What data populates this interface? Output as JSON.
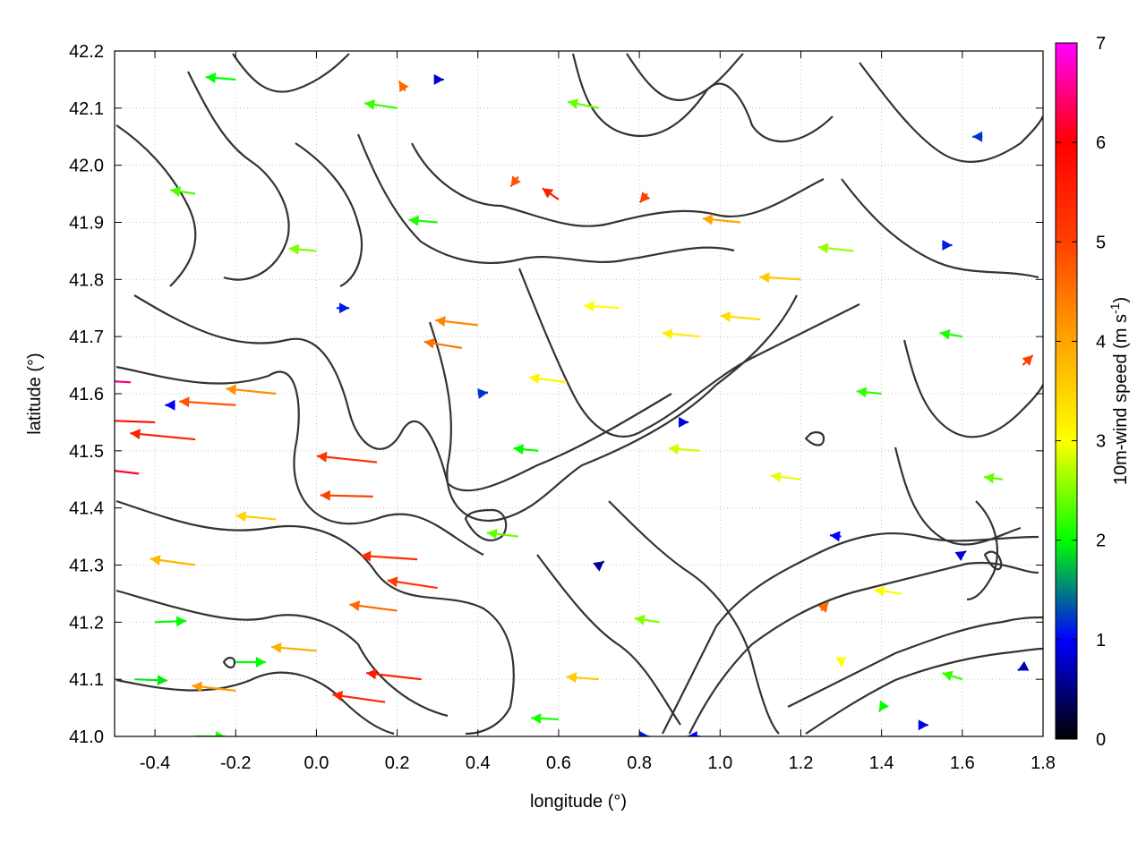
{
  "chart_data": {
    "type": "vector-field",
    "title": "",
    "xlabel": "longitude (°)",
    "ylabel": "latitude (°)",
    "xlim": [
      -0.5,
      1.8
    ],
    "ylim": [
      41.0,
      42.2
    ],
    "xticks": [
      -0.4,
      -0.2,
      0.0,
      0.2,
      0.4,
      0.6,
      0.8,
      1.0,
      1.2,
      1.4,
      1.6,
      1.8
    ],
    "xtick_labels": [
      "-0.4",
      "-0.2",
      "0.0",
      "0.2",
      "0.4",
      "0.6",
      "0.8",
      "1.0",
      "1.2",
      "1.4",
      "1.6",
      "1.8"
    ],
    "yticks": [
      41.0,
      41.1,
      41.2,
      41.3,
      41.4,
      41.5,
      41.6,
      41.7,
      41.8,
      41.9,
      42.0,
      42.1,
      42.2
    ],
    "ytick_labels": [
      "41.0",
      "41.1",
      "41.2",
      "41.3",
      "41.4",
      "41.5",
      "41.6",
      "41.7",
      "41.8",
      "41.9",
      "42.0",
      "42.1",
      "42.2"
    ],
    "grid": true,
    "colorbar": {
      "label": "10m-wind speed (m s",
      "label_superscript": "-1",
      "label_suffix": ")",
      "range": [
        0,
        7
      ],
      "ticks": [
        0,
        1,
        2,
        3,
        4,
        5,
        6,
        7
      ],
      "tick_labels": [
        "0",
        "1",
        "2",
        "3",
        "4",
        "5",
        "6",
        "7"
      ],
      "colormap": [
        {
          "value": 0,
          "color": "#000000"
        },
        {
          "value": 1,
          "color": "#0000ff"
        },
        {
          "value": 1.5,
          "color": "#008080"
        },
        {
          "value": 2,
          "color": "#00ff00"
        },
        {
          "value": 3,
          "color": "#ffff00"
        },
        {
          "value": 4,
          "color": "#ffa500"
        },
        {
          "value": 5,
          "color": "#ff4000"
        },
        {
          "value": 6,
          "color": "#ff0000"
        },
        {
          "value": 7,
          "color": "#ff00ff"
        }
      ]
    },
    "contour_color": "#333333",
    "wind_vectors": [
      {
        "lon": -0.46,
        "lat": 41.62,
        "u": -5.5,
        "v": 0.3,
        "speed": 6.5
      },
      {
        "lon": -0.4,
        "lat": 41.55,
        "u": -5.6,
        "v": 0.2,
        "speed": 5.8
      },
      {
        "lon": -0.3,
        "lat": 41.52,
        "u": -5.2,
        "v": 0.5,
        "speed": 5.5
      },
      {
        "lon": -0.44,
        "lat": 41.46,
        "u": -5.0,
        "v": 0.6,
        "speed": 6.2
      },
      {
        "lon": -0.2,
        "lat": 41.58,
        "u": -4.5,
        "v": 0.3,
        "speed": 4.8
      },
      {
        "lon": -0.1,
        "lat": 41.6,
        "u": -4.0,
        "v": 0.4,
        "speed": 4.2
      },
      {
        "lon": 0.15,
        "lat": 41.48,
        "u": -4.8,
        "v": 0.5,
        "speed": 5.2
      },
      {
        "lon": 0.14,
        "lat": 41.42,
        "u": -4.2,
        "v": 0.1,
        "speed": 5.0
      },
      {
        "lon": 0.25,
        "lat": 41.31,
        "u": -4.5,
        "v": 0.3,
        "speed": 5.3
      },
      {
        "lon": 0.3,
        "lat": 41.26,
        "u": -4.0,
        "v": 0.6,
        "speed": 5.1
      },
      {
        "lon": 0.2,
        "lat": 41.22,
        "u": -3.8,
        "v": 0.5,
        "speed": 4.6
      },
      {
        "lon": 0.26,
        "lat": 41.1,
        "u": -4.4,
        "v": 0.5,
        "speed": 5.6
      },
      {
        "lon": 0.17,
        "lat": 41.06,
        "u": -4.2,
        "v": 0.6,
        "speed": 5.4
      },
      {
        "lon": -0.2,
        "lat": 41.08,
        "u": -3.5,
        "v": 0.4,
        "speed": 4.1
      },
      {
        "lon": -0.3,
        "lat": 41.3,
        "u": -3.6,
        "v": 0.5,
        "speed": 3.8
      },
      {
        "lon": -0.1,
        "lat": 41.38,
        "u": -3.2,
        "v": 0.3,
        "speed": 3.5
      },
      {
        "lon": 0.0,
        "lat": 41.15,
        "u": -3.6,
        "v": 0.3,
        "speed": 3.9
      },
      {
        "lon": 0.4,
        "lat": 41.72,
        "u": -3.4,
        "v": 0.4,
        "speed": 4.3
      },
      {
        "lon": 0.36,
        "lat": 41.68,
        "u": -3.0,
        "v": 0.5,
        "speed": 4.5
      },
      {
        "lon": 0.62,
        "lat": 41.62,
        "u": -3.0,
        "v": 0.4,
        "speed": 3.1
      },
      {
        "lon": 0.75,
        "lat": 41.75,
        "u": -2.8,
        "v": 0.2,
        "speed": 3.0
      },
      {
        "lon": 0.95,
        "lat": 41.7,
        "u": -3.0,
        "v": 0.3,
        "speed": 3.2
      },
      {
        "lon": 1.1,
        "lat": 41.73,
        "u": -3.2,
        "v": 0.3,
        "speed": 3.4
      },
      {
        "lon": 1.2,
        "lat": 41.8,
        "u": -3.3,
        "v": 0.2,
        "speed": 3.6
      },
      {
        "lon": 1.05,
        "lat": 41.9,
        "u": -3.0,
        "v": 0.3,
        "speed": 4.0
      },
      {
        "lon": 1.33,
        "lat": 41.85,
        "u": -2.8,
        "v": 0.3,
        "speed": 2.6
      },
      {
        "lon": 0.7,
        "lat": 42.1,
        "u": -2.5,
        "v": 0.5,
        "speed": 2.4
      },
      {
        "lon": 0.2,
        "lat": 42.1,
        "u": -2.6,
        "v": 0.4,
        "speed": 2.2
      },
      {
        "lon": -0.2,
        "lat": 42.15,
        "u": -2.4,
        "v": 0.2,
        "speed": 2.0
      },
      {
        "lon": -0.3,
        "lat": 41.95,
        "u": -2.0,
        "v": 0.3,
        "speed": 2.3
      },
      {
        "lon": 0.0,
        "lat": 41.85,
        "u": -2.2,
        "v": 0.2,
        "speed": 2.5
      },
      {
        "lon": 0.3,
        "lat": 41.9,
        "u": -2.3,
        "v": 0.2,
        "speed": 2.1
      },
      {
        "lon": 0.6,
        "lat": 41.94,
        "u": -1.3,
        "v": 0.9,
        "speed": 5.5
      },
      {
        "lon": 0.5,
        "lat": 41.98,
        "u": -0.6,
        "v": -0.8,
        "speed": 4.8
      },
      {
        "lon": 0.22,
        "lat": 42.13,
        "u": -0.5,
        "v": 0.8,
        "speed": 4.6
      },
      {
        "lon": 0.82,
        "lat": 41.95,
        "u": -0.6,
        "v": -0.7,
        "speed": 5.0
      },
      {
        "lon": 0.95,
        "lat": 41.5,
        "u": -2.5,
        "v": 0.2,
        "speed": 2.8
      },
      {
        "lon": 1.2,
        "lat": 41.45,
        "u": -2.4,
        "v": 0.3,
        "speed": 2.9
      },
      {
        "lon": 1.4,
        "lat": 41.6,
        "u": -2.0,
        "v": 0.2,
        "speed": 2.2
      },
      {
        "lon": 1.6,
        "lat": 41.7,
        "u": -1.8,
        "v": 0.3,
        "speed": 2.1
      },
      {
        "lon": 1.7,
        "lat": 41.45,
        "u": -1.5,
        "v": 0.2,
        "speed": 2.4
      },
      {
        "lon": 1.75,
        "lat": 41.65,
        "u": 0.8,
        "v": 0.8,
        "speed": 5.0
      },
      {
        "lon": 1.45,
        "lat": 41.25,
        "u": -2.2,
        "v": 0.3,
        "speed": 3.0
      },
      {
        "lon": 1.25,
        "lat": 41.22,
        "u": 0.6,
        "v": 0.7,
        "speed": 4.6
      },
      {
        "lon": 1.6,
        "lat": 41.1,
        "u": -1.6,
        "v": 0.5,
        "speed": 2.2
      },
      {
        "lon": 1.4,
        "lat": 41.05,
        "u": -0.2,
        "v": -0.3,
        "speed": 2.0
      },
      {
        "lon": 1.3,
        "lat": 41.13,
        "u": 0.0,
        "v": -0.4,
        "speed": 3.0
      },
      {
        "lon": 0.85,
        "lat": 41.2,
        "u": -2.0,
        "v": 0.3,
        "speed": 2.5
      },
      {
        "lon": 0.7,
        "lat": 41.1,
        "u": -2.6,
        "v": 0.2,
        "speed": 3.6
      },
      {
        "lon": 0.6,
        "lat": 41.03,
        "u": -2.2,
        "v": 0.1,
        "speed": 2.1
      },
      {
        "lon": 0.5,
        "lat": 41.35,
        "u": -2.5,
        "v": 0.3,
        "speed": 2.4
      },
      {
        "lon": 0.55,
        "lat": 41.5,
        "u": -2.0,
        "v": 0.2,
        "speed": 2.0
      },
      {
        "lon": -0.4,
        "lat": 41.2,
        "u": 2.5,
        "v": 0.1,
        "speed": 2.0
      },
      {
        "lon": -0.45,
        "lat": 41.1,
        "u": 2.6,
        "v": -0.1,
        "speed": 1.9
      },
      {
        "lon": -0.3,
        "lat": 41.0,
        "u": 2.4,
        "v": 0.0,
        "speed": 2.1
      },
      {
        "lon": -0.2,
        "lat": 41.13,
        "u": 2.4,
        "v": 0.0,
        "speed": 2.0
      },
      {
        "lon": 0.95,
        "lat": 41.0,
        "u": -1.0,
        "v": 0.0,
        "speed": 1.0
      },
      {
        "lon": 0.8,
        "lat": 41.0,
        "u": 0.8,
        "v": 0.0,
        "speed": 1.1
      },
      {
        "lon": 0.4,
        "lat": 41.6,
        "u": 0.8,
        "v": 0.1,
        "speed": 1.2
      },
      {
        "lon": 0.05,
        "lat": 41.75,
        "u": 1.0,
        "v": 0.0,
        "speed": 1.1
      },
      {
        "lon": 1.55,
        "lat": 41.86,
        "u": 0.8,
        "v": 0.0,
        "speed": 1.1
      },
      {
        "lon": 1.65,
        "lat": 42.05,
        "u": -0.8,
        "v": 0.0,
        "speed": 1.2
      },
      {
        "lon": 0.9,
        "lat": 41.55,
        "u": 0.7,
        "v": 0.0,
        "speed": 0.9
      },
      {
        "lon": 1.3,
        "lat": 41.35,
        "u": -0.9,
        "v": 0.1,
        "speed": 1.0
      },
      {
        "lon": 1.6,
        "lat": 41.32,
        "u": 0.3,
        "v": 0.2,
        "speed": 0.8
      },
      {
        "lon": 0.3,
        "lat": 42.15,
        "u": 0.5,
        "v": 0.0,
        "speed": 0.8
      },
      {
        "lon": -0.35,
        "lat": 41.58,
        "u": -0.8,
        "v": 0.0,
        "speed": 1.0
      },
      {
        "lon": 0.7,
        "lat": 41.3,
        "u": 0.4,
        "v": 0.3,
        "speed": 0.6
      },
      {
        "lon": 1.5,
        "lat": 41.02,
        "u": 0.5,
        "v": 0.0,
        "speed": 0.9
      },
      {
        "lon": 1.75,
        "lat": 41.12,
        "u": -0.4,
        "v": -0.2,
        "speed": 0.7
      }
    ]
  }
}
